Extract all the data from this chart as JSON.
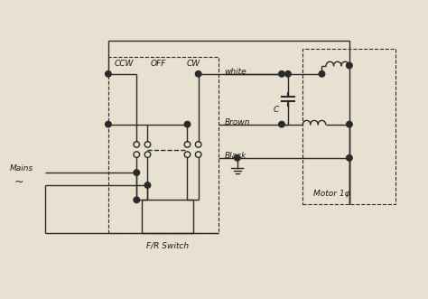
{
  "bg_color": "#e8e0d0",
  "line_color": "#2a2a2a",
  "text_color": "#1a1a1a",
  "labels": {
    "ccw": "CCW",
    "off": "OFF",
    "cw": "CW",
    "white": "white",
    "brown": "Brown",
    "black": "Black",
    "mains": "Mains",
    "tilde": "~",
    "fr_switch": "F/R Switch",
    "motor": "Motor 1φ",
    "cap": "C"
  },
  "figsize": [
    4.74,
    3.31
  ],
  "dpi": 100
}
